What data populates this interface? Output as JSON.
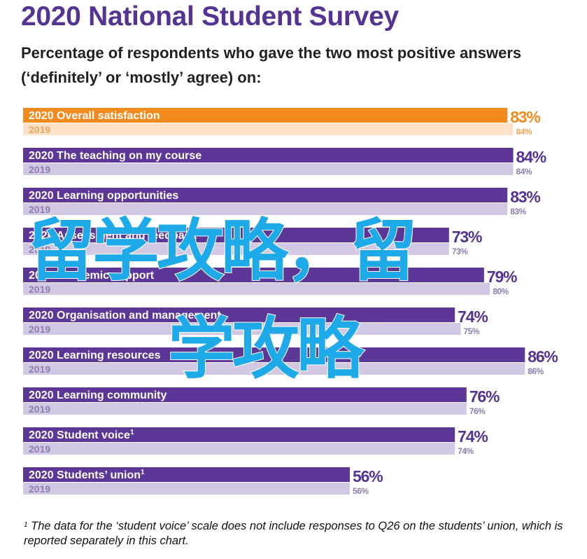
{
  "title": "2020 National Student Survey",
  "subtitle": "Percentage of respondents who gave the two most positive answers (‘definitely’ or ‘mostly’ agree) on:",
  "footnote": {
    "marker": "1",
    "text": " The data for the ‘student voice’ scale does not include responses to Q26 on the students’ union, which is reported separately in this chart."
  },
  "watermark": {
    "line1": "留学攻略，留",
    "line2": "学攻略"
  },
  "colors": {
    "highlight_2020": "#f28a1e",
    "highlight_2019": "#fde2c8",
    "bar_2020": "#5c3798",
    "bar_2019": "#d3c8e3",
    "label_2020_text": "#ffffff",
    "label_2019_text": "#8e7cb0",
    "highlight_2019_text": "#eea45a",
    "value_2020_text": "#553393",
    "highlight_value_text": "#f28a1e",
    "title": "#553393"
  },
  "chart_data": {
    "type": "bar",
    "orientation": "horizontal",
    "xlim": [
      0,
      100
    ],
    "grid": false,
    "value_suffix": "%",
    "categories": [
      {
        "label": "Overall satisfaction",
        "sup": "",
        "highlight": true
      },
      {
        "label": "The teaching on my course",
        "sup": "",
        "highlight": false
      },
      {
        "label": "Learning opportunities",
        "sup": "",
        "highlight": false
      },
      {
        "label": "Assessment and feedback",
        "sup": "",
        "highlight": false
      },
      {
        "label": "Academic support",
        "sup": "",
        "highlight": false
      },
      {
        "label": "Organisation and management",
        "sup": "",
        "highlight": false
      },
      {
        "label": "Learning resources",
        "sup": "",
        "highlight": false
      },
      {
        "label": "Learning community",
        "sup": "",
        "highlight": false
      },
      {
        "label": "Student voice",
        "sup": "1",
        "highlight": false
      },
      {
        "label": "Students’ union",
        "sup": "1",
        "highlight": false
      }
    ],
    "series": [
      {
        "name": "2020",
        "values": [
          83,
          84,
          83,
          73,
          79,
          74,
          86,
          76,
          74,
          56
        ]
      },
      {
        "name": "2019",
        "values": [
          84,
          84,
          83,
          73,
          80,
          75,
          86,
          76,
          74,
          56
        ]
      }
    ]
  }
}
